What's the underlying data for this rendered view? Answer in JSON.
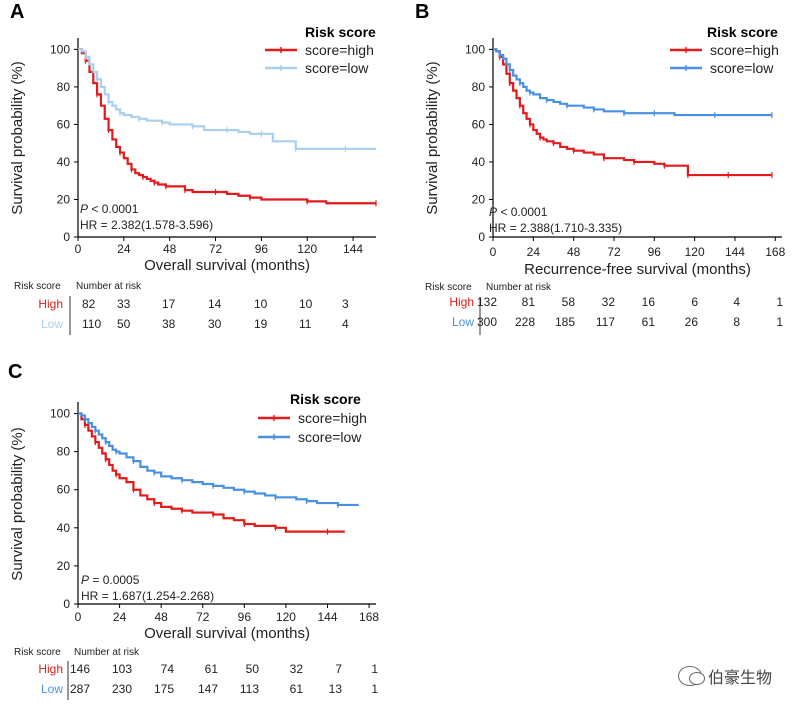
{
  "colors": {
    "high": "#e31a1c",
    "low_a": "#a6cff0",
    "low_bc": "#4a90e2",
    "axis": "#000000",
    "text": "#222222"
  },
  "chart_data": [
    {
      "panel_label": "A",
      "type": "line",
      "subtype": "kaplan-meier",
      "ylabel": "Survival probability (%)",
      "xlabel": "Overall survival (months)",
      "xlim": [
        0,
        156
      ],
      "ylim": [
        0,
        105
      ],
      "xticks": [
        0,
        24,
        48,
        72,
        96,
        120,
        144
      ],
      "yticks": [
        0,
        20,
        40,
        60,
        80,
        100
      ],
      "legend_title": "Risk score",
      "legend_position": "top-right",
      "p_prefix": "P",
      "p_text": " < 0.0001",
      "hr_text": "HR = 2.382(1.578-3.596)",
      "series": [
        {
          "name": "score=high",
          "color_key": "high",
          "x": [
            0,
            2,
            4,
            6,
            8,
            10,
            12,
            14,
            16,
            18,
            20,
            22,
            24,
            26,
            28,
            30,
            32,
            34,
            36,
            38,
            40,
            42,
            44,
            46,
            48,
            52,
            56,
            60,
            66,
            72,
            78,
            84,
            90,
            96,
            110,
            120,
            130,
            140,
            156
          ],
          "y": [
            100,
            98,
            94,
            88,
            82,
            76,
            70,
            63,
            57,
            52,
            48,
            45,
            42,
            39,
            36,
            34,
            33,
            32,
            31,
            30,
            29,
            28,
            28,
            27,
            27,
            27,
            25,
            24,
            24,
            24,
            23,
            22,
            21,
            20,
            20,
            19,
            18,
            18,
            18
          ]
        },
        {
          "name": "score=low",
          "color_key": "low_a",
          "x": [
            0,
            2,
            4,
            6,
            8,
            10,
            12,
            14,
            16,
            18,
            20,
            22,
            24,
            28,
            32,
            36,
            40,
            44,
            48,
            54,
            60,
            66,
            72,
            78,
            84,
            90,
            96,
            102,
            108,
            114,
            120,
            130,
            140,
            150,
            156
          ],
          "y": [
            100,
            99,
            96,
            92,
            88,
            84,
            80,
            76,
            72,
            70,
            68,
            66,
            65,
            64,
            63,
            62,
            62,
            61,
            60,
            60,
            59,
            57,
            57,
            57,
            56,
            55,
            55,
            51,
            51,
            47,
            47,
            47,
            47,
            47,
            47
          ]
        }
      ],
      "risk_table": {
        "header_left": "Risk score",
        "header_right": "Number at risk",
        "rows": [
          {
            "label": "High",
            "color_key": "high",
            "values": [
              "82",
              "33",
              "17",
              "14",
              "10",
              "10",
              "3"
            ]
          },
          {
            "label": "Low",
            "color_key": "low_a",
            "values": [
              "110",
              "50",
              "38",
              "30",
              "19",
              "11",
              "4"
            ]
          }
        ]
      }
    },
    {
      "panel_label": "B",
      "type": "line",
      "subtype": "kaplan-meier",
      "ylabel": "Survival probability (%)",
      "xlabel": "Recurrence-free survival (months)",
      "xlim": [
        0,
        172
      ],
      "ylim": [
        0,
        105
      ],
      "xticks": [
        0,
        24,
        48,
        72,
        96,
        120,
        144,
        168
      ],
      "yticks": [
        0,
        20,
        40,
        60,
        80,
        100
      ],
      "legend_title": "Risk score",
      "legend_position": "top-right",
      "p_prefix": "P",
      "p_text": " < 0.0001",
      "hr_text": "HR = 2.388(1.710-3.335)",
      "series": [
        {
          "name": "score=high",
          "color_key": "high",
          "x": [
            0,
            2,
            4,
            6,
            8,
            10,
            12,
            14,
            16,
            18,
            20,
            22,
            24,
            26,
            28,
            30,
            32,
            36,
            40,
            44,
            48,
            54,
            60,
            66,
            72,
            78,
            84,
            90,
            96,
            102,
            108,
            114,
            116,
            120,
            130,
            140,
            150,
            160,
            166
          ],
          "y": [
            100,
            99,
            96,
            92,
            87,
            82,
            78,
            74,
            70,
            66,
            63,
            60,
            57,
            55,
            53,
            52,
            51,
            50,
            48,
            47,
            46,
            45,
            44,
            42,
            42,
            41,
            40,
            40,
            39,
            38,
            38,
            38,
            33,
            33,
            33,
            33,
            33,
            33,
            33
          ]
        },
        {
          "name": "score=low",
          "color_key": "low_bc",
          "x": [
            0,
            2,
            4,
            6,
            8,
            10,
            12,
            14,
            16,
            18,
            20,
            22,
            24,
            28,
            32,
            36,
            40,
            44,
            48,
            54,
            60,
            66,
            72,
            78,
            84,
            90,
            96,
            108,
            120,
            132,
            144,
            156,
            166
          ],
          "y": [
            100,
            99,
            97,
            95,
            92,
            89,
            86,
            84,
            82,
            80,
            78,
            77,
            76,
            74,
            73,
            72,
            71,
            70,
            70,
            69,
            68,
            67,
            67,
            66,
            66,
            66,
            66,
            65,
            65,
            65,
            65,
            65,
            65
          ]
        }
      ],
      "risk_table": {
        "header_left": "Risk score",
        "header_right": "Number at risk",
        "rows": [
          {
            "label": "High",
            "color_key": "high",
            "values": [
              "132",
              "81",
              "58",
              "32",
              "16",
              "6",
              "4",
              "1"
            ]
          },
          {
            "label": "Low",
            "color_key": "low_bc",
            "values": [
              "300",
              "228",
              "185",
              "117",
              "61",
              "26",
              "8",
              "1"
            ]
          }
        ]
      }
    },
    {
      "panel_label": "C",
      "type": "line",
      "subtype": "kaplan-meier",
      "ylabel": "Survival probability (%)",
      "xlabel": "Overall survival (months)",
      "xlim": [
        0,
        172
      ],
      "ylim": [
        0,
        105
      ],
      "xticks": [
        0,
        24,
        48,
        72,
        96,
        120,
        144,
        168
      ],
      "yticks": [
        0,
        20,
        40,
        60,
        80,
        100
      ],
      "legend_title": "Risk score",
      "legend_position": "top-right",
      "p_prefix": "P",
      "p_text": " = 0.0005",
      "hr_text": "HR = 1.687(1.254-2.268)",
      "series": [
        {
          "name": "score=high",
          "color_key": "high",
          "x": [
            0,
            2,
            4,
            6,
            8,
            10,
            12,
            14,
            16,
            18,
            20,
            22,
            24,
            28,
            32,
            36,
            40,
            44,
            48,
            54,
            60,
            66,
            72,
            78,
            84,
            90,
            96,
            102,
            108,
            114,
            120,
            132,
            144,
            154
          ],
          "y": [
            100,
            97,
            94,
            91,
            88,
            85,
            82,
            79,
            76,
            73,
            70,
            68,
            66,
            64,
            60,
            57,
            55,
            53,
            51,
            50,
            49,
            48,
            48,
            47,
            45,
            44,
            42,
            41,
            41,
            40,
            38,
            38,
            38,
            38
          ]
        },
        {
          "name": "score=low",
          "color_key": "low_bc",
          "x": [
            0,
            2,
            4,
            6,
            8,
            10,
            12,
            14,
            16,
            18,
            20,
            22,
            24,
            28,
            32,
            36,
            40,
            44,
            48,
            54,
            60,
            66,
            72,
            78,
            84,
            90,
            96,
            102,
            108,
            114,
            120,
            126,
            132,
            138,
            144,
            150,
            156,
            162
          ],
          "y": [
            100,
            99,
            97,
            95,
            93,
            91,
            89,
            87,
            85,
            83,
            81,
            80,
            79,
            77,
            75,
            72,
            70,
            69,
            67,
            66,
            65,
            64,
            63,
            62,
            61,
            60,
            59,
            58,
            57,
            56,
            56,
            55,
            54,
            53,
            53,
            52,
            52,
            52
          ]
        }
      ],
      "risk_table": {
        "header_left": "Risk score",
        "header_right": "Number at risk",
        "rows": [
          {
            "label": "High",
            "color_key": "high",
            "values": [
              "146",
              "103",
              "74",
              "61",
              "50",
              "32",
              "7",
              "1"
            ]
          },
          {
            "label": "Low",
            "color_key": "low_bc",
            "values": [
              "287",
              "230",
              "175",
              "147",
              "113",
              "61",
              "13",
              "1"
            ]
          }
        ]
      }
    }
  ],
  "watermark": {
    "text": "伯豪生物",
    "icon": "wechat-icon"
  }
}
